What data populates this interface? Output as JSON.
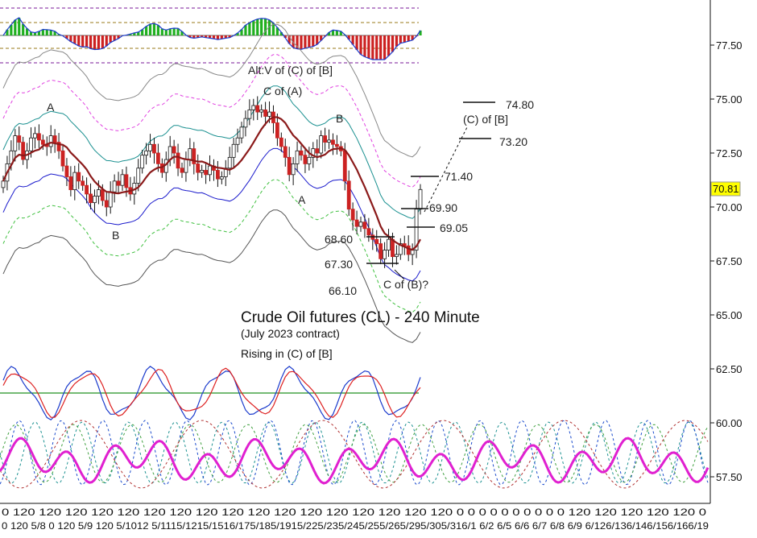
{
  "chart_data": {
    "type": "candlestick",
    "title": "Crude Oil futures (CL) - 240 Minute",
    "subtitle": "(July 2023 contract)",
    "note": "Rising in (C) of [B]",
    "ylim": [
      56.4,
      79.4
    ],
    "y_ticks": [
      "77.50",
      "75.00",
      "72.50",
      "70.00",
      "67.50",
      "65.00",
      "62.50",
      "60.00",
      "57.50"
    ],
    "last_price": "70.81",
    "x_tick_labels": [
      "0",
      "12",
      "5/8",
      "0",
      "12",
      "5/9",
      "0",
      "12",
      "5/10",
      "0",
      "5/11",
      "12",
      "5/12",
      "0",
      "5/15",
      "12",
      "5/16",
      "0",
      "5/17",
      "12",
      "5/18",
      "0",
      "5/19",
      "12",
      "5/22",
      "0",
      "5/23",
      "12",
      "5/24",
      "0",
      "5/25",
      "12",
      "5/26",
      "0",
      "5/29",
      "12",
      "5/30",
      "0",
      "5/31",
      "12",
      "6/1",
      "0",
      "6/2",
      "12",
      "6/5",
      "0",
      "6/6",
      "12",
      "6/7",
      "0",
      "6/8",
      "12",
      "6/9",
      "0",
      "6/12",
      "12",
      "6/13",
      "0",
      "6/14",
      "12",
      "6/15",
      "0",
      "6/16",
      "12",
      "6/19",
      "0"
    ],
    "x_tick_text": "0   120   5/8   0 120   5/9   120   5/1012   5/1115/1215/1516/175/185/1915/225/235/245/255/265/295/305/316/1 6/2 6/5 6/6 6/7 6/8 6/9 6/126/136/146/156/166/19",
    "closes": [
      71.2,
      72.0,
      72.6,
      73.3,
      73.0,
      72.2,
      72.6,
      73.2,
      73.4,
      73.1,
      72.9,
      72.8,
      73.3,
      73.0,
      72.6,
      71.9,
      71.4,
      70.8,
      71.6,
      71.2,
      71.0,
      70.6,
      70.2,
      70.5,
      70.8,
      70.3,
      70.0,
      70.7,
      71.2,
      71.0,
      71.5,
      70.9,
      70.6,
      71.1,
      71.8,
      72.4,
      72.6,
      72.9,
      72.5,
      72.0,
      71.6,
      72.2,
      72.8,
      72.5,
      71.8,
      71.6,
      72.2,
      72.7,
      72.0,
      71.6,
      71.7,
      71.5,
      71.9,
      71.7,
      71.3,
      71.4,
      71.8,
      72.3,
      72.9,
      73.2,
      73.7,
      74.1,
      74.5,
      74.7,
      74.4,
      74.5,
      74.2,
      74.4,
      73.9,
      73.2,
      72.8,
      72.3,
      71.5,
      72.0,
      72.6,
      72.4,
      72.0,
      72.3,
      72.7,
      72.5,
      73.3,
      73.0,
      73.1,
      72.9,
      72.8,
      72.6,
      71.2,
      69.9,
      69.4,
      69.1,
      69.3,
      69.0,
      68.7,
      68.5,
      68.3,
      67.6,
      68.0,
      68.5,
      67.7,
      67.8,
      68.3,
      68.2,
      67.8,
      68.0,
      69.9,
      70.81
    ],
    "annotations": [
      {
        "label": "Alt:V of (C) of [B]"
      },
      {
        "label": "C of (A)"
      },
      {
        "label": "A"
      },
      {
        "label": "B"
      },
      {
        "label": "A"
      },
      {
        "label": "B"
      },
      {
        "label": "C of (B)?"
      }
    ],
    "levels": [
      {
        "label": "74.80",
        "value": 74.8
      },
      {
        "label": "(C) of [B]",
        "value": 74.0
      },
      {
        "label": "73.20",
        "value": 73.2
      },
      {
        "label": "71.40",
        "value": 71.4
      },
      {
        "label": "69.90",
        "value": 69.9
      },
      {
        "label": "69.05",
        "value": 69.05
      },
      {
        "label": "68.60",
        "value": 68.6
      },
      {
        "label": "67.30",
        "value": 67.3
      },
      {
        "label": "66.10",
        "value": 66.1
      }
    ],
    "colors": {
      "up_candle": "#1a1a1a",
      "down_candle": "#cc2222",
      "ma_line": "#8b1a1a",
      "upper_band": "#1a9090",
      "lower_band": "#1a1acc",
      "outer_band": "#888888",
      "pink_band": "#e040e0",
      "green_band": "#40c040",
      "histogram_up": "#20b020",
      "histogram_down": "#cc2020",
      "osc_blue": "#1a3acc",
      "osc_red": "#dd2020",
      "osc_green": "#209020",
      "cycle_pink": "#e020d0"
    },
    "grid": false
  }
}
